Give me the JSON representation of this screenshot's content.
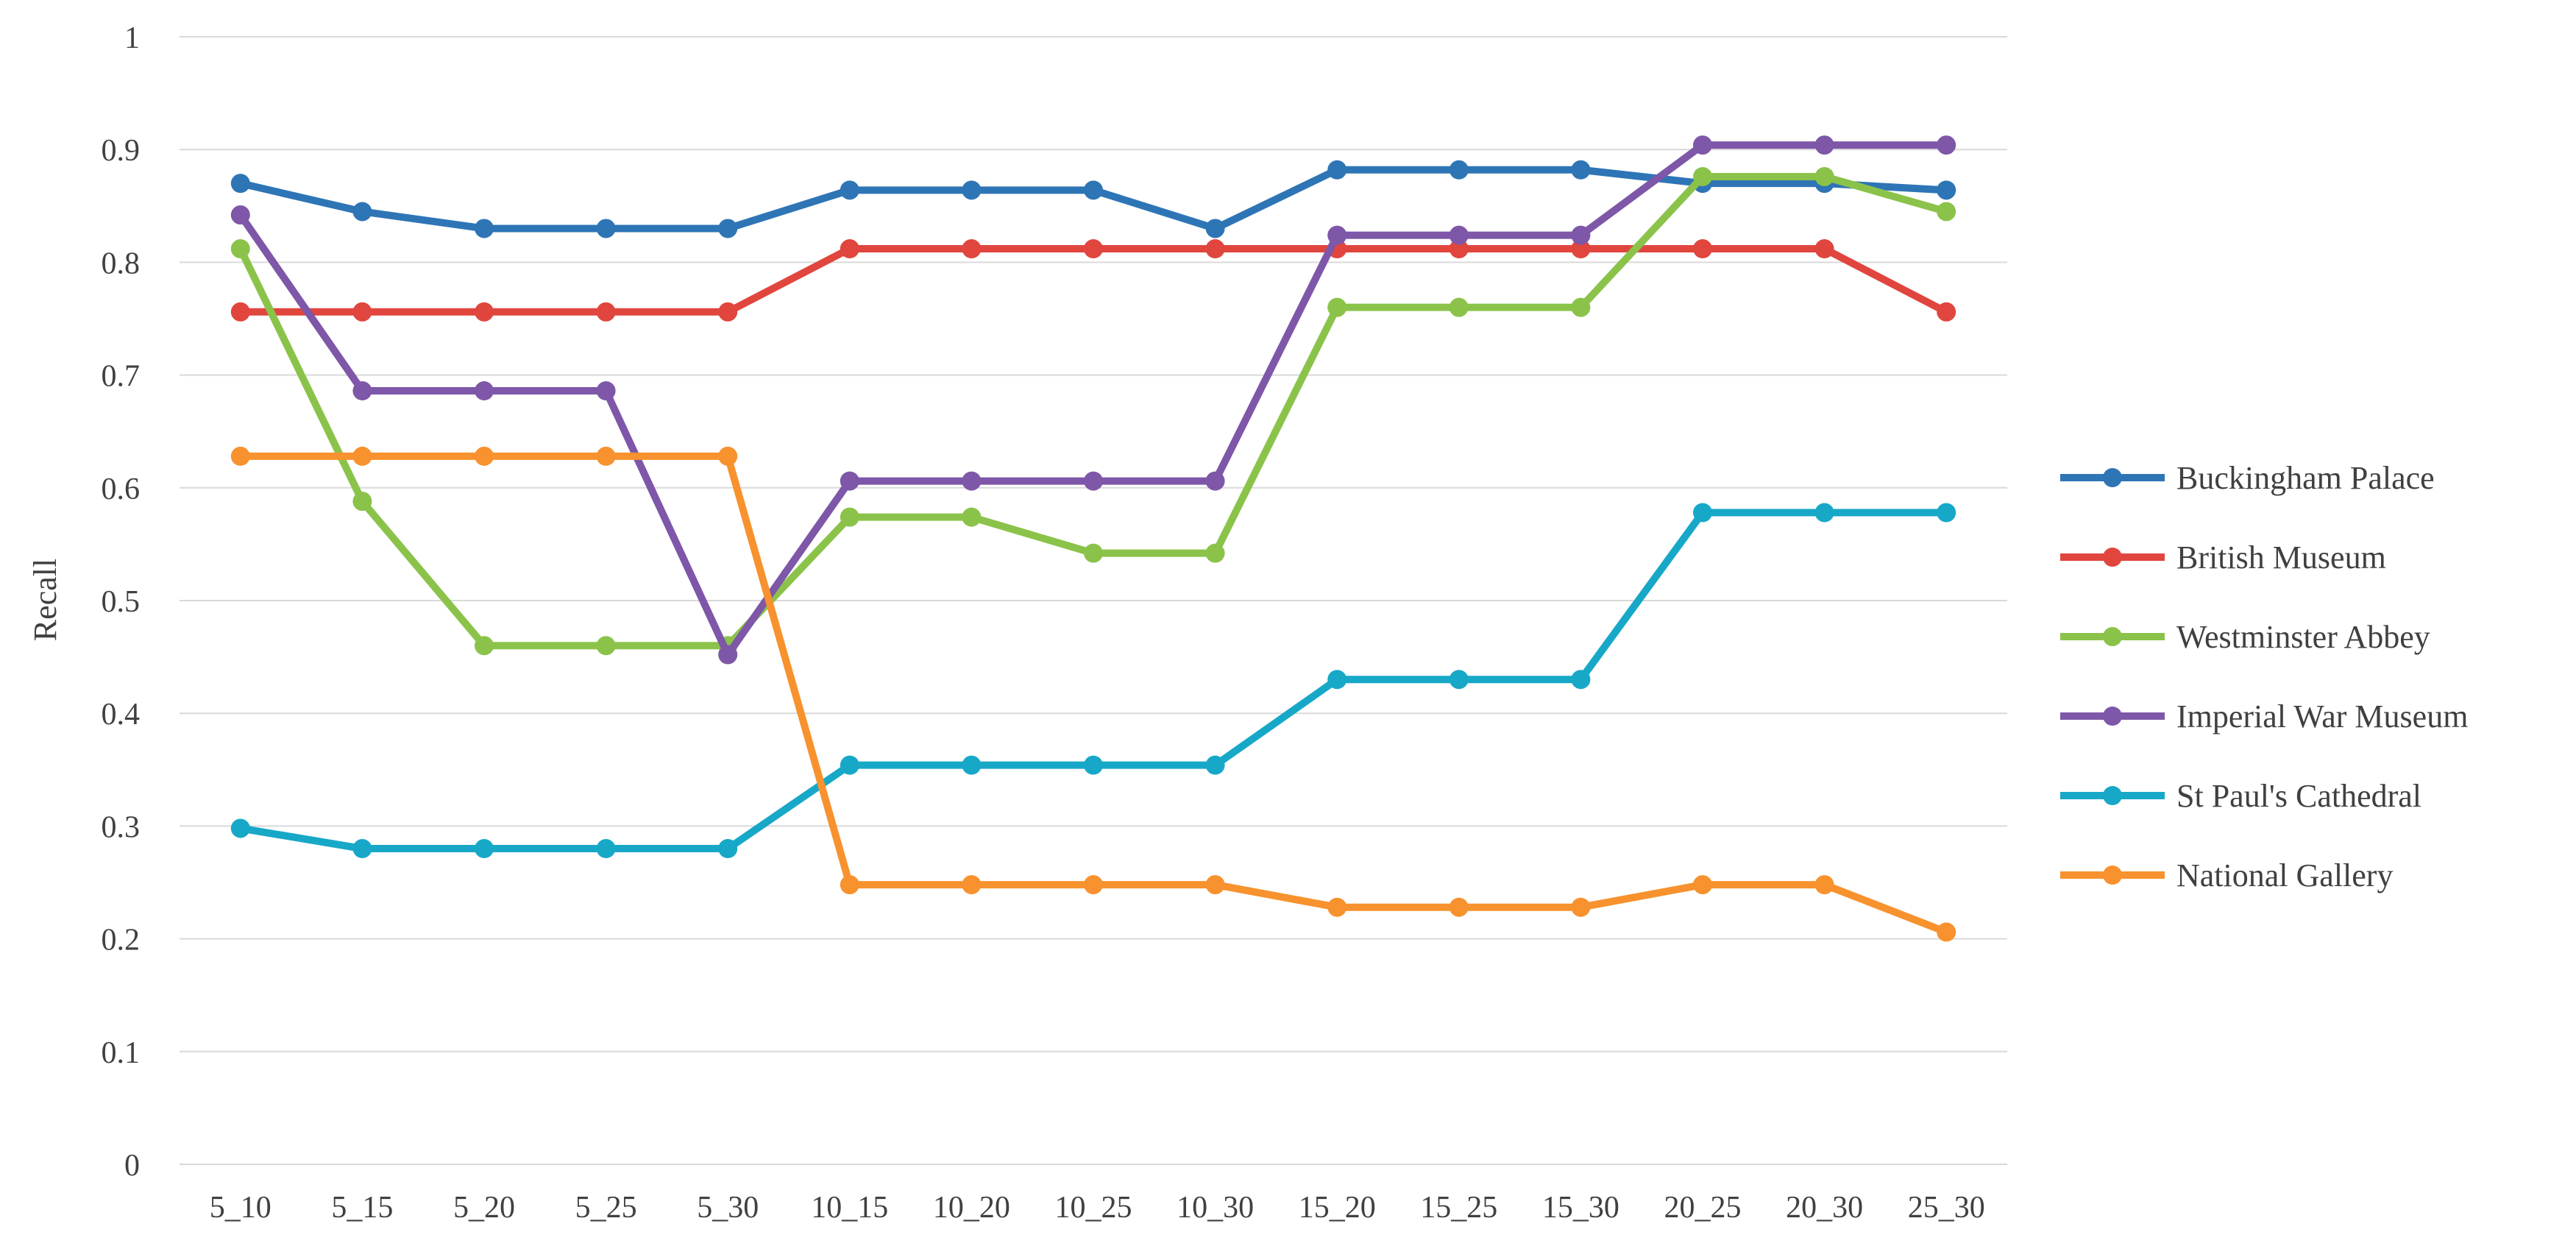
{
  "chart_data": {
    "type": "line",
    "ylabel": "Recall",
    "ylim": [
      0,
      1
    ],
    "yticks": [
      "0",
      "0.1",
      "0.2",
      "0.3",
      "0.4",
      "0.5",
      "0.6",
      "0.7",
      "0.8",
      "0.9",
      "1"
    ],
    "grid": true,
    "legend_position": "right",
    "categories": [
      "5_10",
      "5_15",
      "5_20",
      "5_25",
      "5_30",
      "10_15",
      "10_20",
      "10_25",
      "10_30",
      "15_20",
      "15_25",
      "15_30",
      "20_25",
      "20_30",
      "25_30"
    ],
    "series": [
      {
        "name": "Buckingham Palace",
        "color": "#2E75B6",
        "values": [
          0.87,
          0.845,
          0.83,
          0.83,
          0.83,
          0.864,
          0.864,
          0.864,
          0.83,
          0.882,
          0.882,
          0.882,
          0.87,
          0.87,
          0.864
        ]
      },
      {
        "name": "British Museum",
        "color": "#E0463E",
        "values": [
          0.756,
          0.756,
          0.756,
          0.756,
          0.756,
          0.812,
          0.812,
          0.812,
          0.812,
          0.812,
          0.812,
          0.812,
          0.812,
          0.812,
          0.756
        ]
      },
      {
        "name": "Westminster Abbey",
        "color": "#8BC34A",
        "values": [
          0.812,
          0.588,
          0.46,
          0.46,
          0.46,
          0.574,
          0.574,
          0.542,
          0.542,
          0.76,
          0.76,
          0.76,
          0.876,
          0.876,
          0.845
        ]
      },
      {
        "name": "Imperial War Museum",
        "color": "#7E57A8",
        "values": [
          0.842,
          0.686,
          0.686,
          0.686,
          0.452,
          0.606,
          0.606,
          0.606,
          0.606,
          0.824,
          0.824,
          0.824,
          0.904,
          0.904,
          0.904
        ]
      },
      {
        "name": "St Paul's Cathedral",
        "color": "#17A8C8",
        "values": [
          0.298,
          0.28,
          0.28,
          0.28,
          0.28,
          0.354,
          0.354,
          0.354,
          0.354,
          0.43,
          0.43,
          0.43,
          0.578,
          0.578,
          0.578
        ]
      },
      {
        "name": "National Gallery",
        "color": "#F7922E",
        "values": [
          0.628,
          0.628,
          0.628,
          0.628,
          0.628,
          0.248,
          0.248,
          0.248,
          0.248,
          0.228,
          0.228,
          0.228,
          0.248,
          0.248,
          0.206
        ]
      }
    ]
  }
}
